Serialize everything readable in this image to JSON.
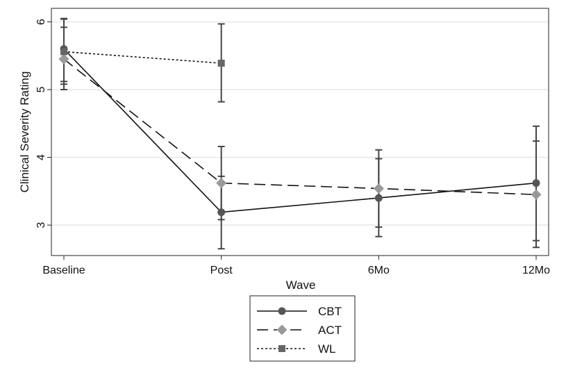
{
  "chart_data": {
    "type": "line",
    "title": "",
    "xlabel": "Wave",
    "ylabel": "Clinical Severity Rating",
    "categories": [
      "Baseline",
      "Post",
      "6Mo",
      "12Mo"
    ],
    "yticks": [
      3,
      4,
      5,
      6
    ],
    "ylim": [
      2.55,
      6.2
    ],
    "grid": true,
    "legend_placement": "bottom-center",
    "series": [
      {
        "name": "CBT",
        "marker": "circle",
        "dash": "solid",
        "color": "#555555",
        "values": [
          5.6,
          3.19,
          3.4,
          3.62
        ],
        "ci_low": [
          5.12,
          2.65,
          2.83,
          2.77
        ],
        "ci_high": [
          6.05,
          3.72,
          3.98,
          4.46
        ]
      },
      {
        "name": "ACT",
        "marker": "diamond",
        "dash": "long-dash",
        "color": "#999999",
        "values": [
          5.45,
          3.62,
          3.54,
          3.45
        ],
        "ci_low": [
          5.0,
          3.08,
          2.97,
          2.67
        ],
        "ci_high": [
          5.92,
          4.16,
          4.11,
          4.24
        ]
      },
      {
        "name": "WL",
        "marker": "square",
        "dash": "dotted",
        "color": "#666666",
        "values": [
          5.56,
          5.39,
          null,
          null
        ],
        "ci_low": [
          5.08,
          4.82,
          null,
          null
        ],
        "ci_high": [
          6.04,
          5.97,
          null,
          null
        ]
      }
    ]
  }
}
